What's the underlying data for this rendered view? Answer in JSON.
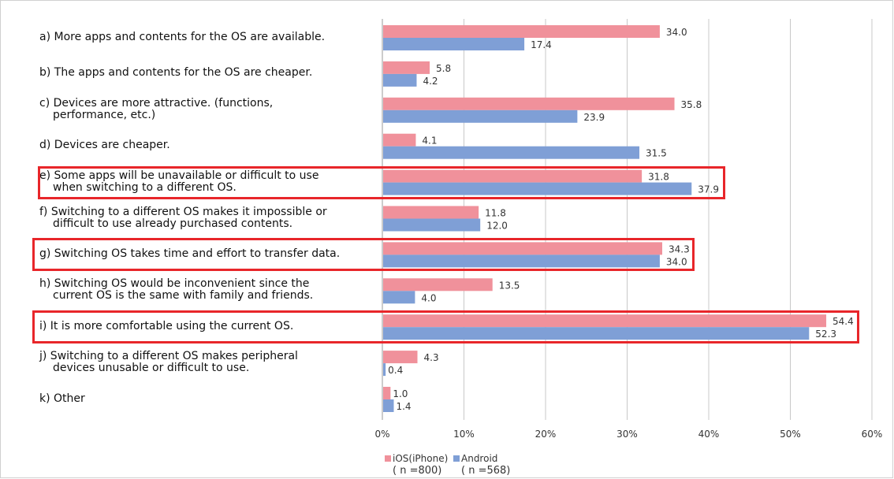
{
  "chart_data": {
    "type": "bar",
    "orientation": "horizontal",
    "categories": [
      [
        "a) More apps and contents for the OS are available."
      ],
      [
        "b) The apps and contents for the OS are cheaper."
      ],
      [
        "c) Devices are more attractive. (functions,",
        "performance, etc.)"
      ],
      [
        "d) Devices are cheaper."
      ],
      [
        "e) Some apps will be unavailable or difficult to use",
        "when switching to a different OS."
      ],
      [
        "f) Switching to a different OS makes it impossible or",
        "difficult to use already purchased contents."
      ],
      [
        "g) Switching OS takes time and effort to transfer data."
      ],
      [
        "h) Switching OS would be inconvenient since the",
        "current OS is the same with family and friends."
      ],
      [
        "i) It is more comfortable using the current OS."
      ],
      [
        "j) Switching to a different OS makes peripheral",
        "devices unusable or difficult to use."
      ],
      [
        "k) Other"
      ]
    ],
    "series": [
      {
        "name": "iOS(iPhone)",
        "n_label": "( n =800)",
        "color": "#f0919b",
        "values": [
          34.0,
          5.8,
          35.8,
          4.1,
          31.8,
          11.8,
          34.3,
          13.5,
          54.4,
          4.3,
          1.0
        ]
      },
      {
        "name": "Android",
        "n_label": "( n =568)",
        "color": "#7f9fd6",
        "values": [
          17.4,
          4.2,
          23.9,
          31.5,
          37.9,
          12.0,
          34.0,
          4.0,
          52.3,
          0.4,
          1.4
        ]
      }
    ],
    "xlim": [
      0,
      60
    ],
    "xticks": [
      "0%",
      "10%",
      "20%",
      "30%",
      "40%",
      "50%",
      "60%"
    ],
    "grid": true,
    "legend": "bottom-left",
    "highlighted_categories": [
      4,
      6,
      8
    ],
    "highlight_color": "#e8262a"
  }
}
